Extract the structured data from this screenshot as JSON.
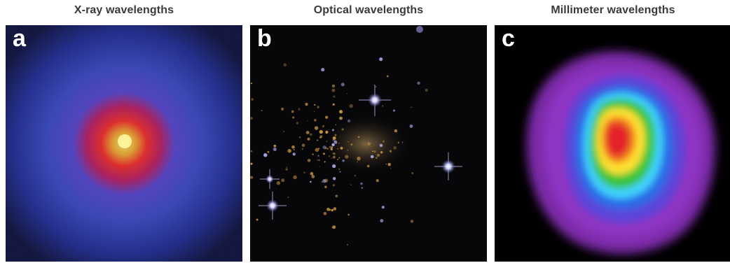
{
  "panels": [
    {
      "title": "X-ray wavelengths",
      "letter": "a",
      "icon": "xray-cluster-image",
      "colors": {
        "background": "#0b0d2e",
        "halo": "#3d4bc7",
        "core": "#ff2a1a",
        "peak": "#fff25a"
      }
    },
    {
      "title": "Optical wavelengths",
      "letter": "b",
      "icon": "optical-starfield-image",
      "colors": {
        "background": "#07070a",
        "galaxy": "#d49a45",
        "star": "#f3f1ff"
      }
    },
    {
      "title": "Millimeter wavelengths",
      "letter": "c",
      "icon": "millimeter-contour-image",
      "colors": {
        "background": "#000000",
        "outer": "#8e2fbf",
        "blue": "#2b6ae6",
        "cyan": "#3fd3ff",
        "green": "#3ac43a",
        "yellow": "#ffe133",
        "red": "#e3202a"
      }
    }
  ]
}
